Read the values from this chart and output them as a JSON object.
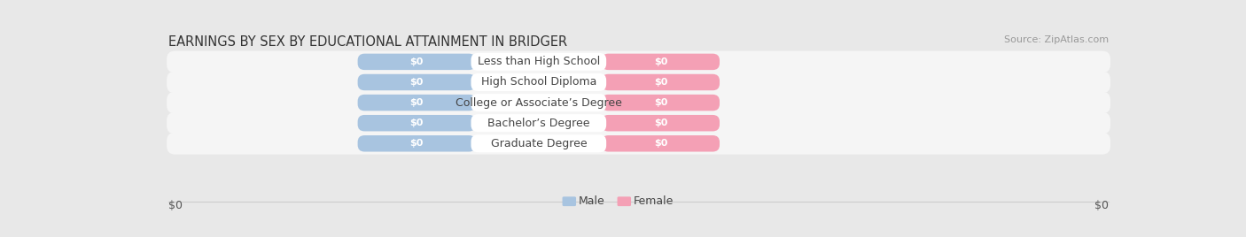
{
  "title": "EARNINGS BY SEX BY EDUCATIONAL ATTAINMENT IN BRIDGER",
  "source": "Source: ZipAtlas.com",
  "categories": [
    "Less than High School",
    "High School Diploma",
    "College or Associate’s Degree",
    "Bachelor’s Degree",
    "Graduate Degree"
  ],
  "male_values": [
    0,
    0,
    0,
    0,
    0
  ],
  "female_values": [
    0,
    0,
    0,
    0,
    0
  ],
  "male_color": "#a8c4e0",
  "female_color": "#f4a0b5",
  "male_label": "Male",
  "female_label": "Female",
  "background_color": "#e8e8e8",
  "row_bg_color": "#f5f5f5",
  "title_fontsize": 10.5,
  "source_fontsize": 8,
  "bar_value_fontsize": 8,
  "category_fontsize": 9,
  "legend_fontsize": 9,
  "xlabel_left": "$0",
  "xlabel_right": "$0",
  "xlabel_fontsize": 9
}
